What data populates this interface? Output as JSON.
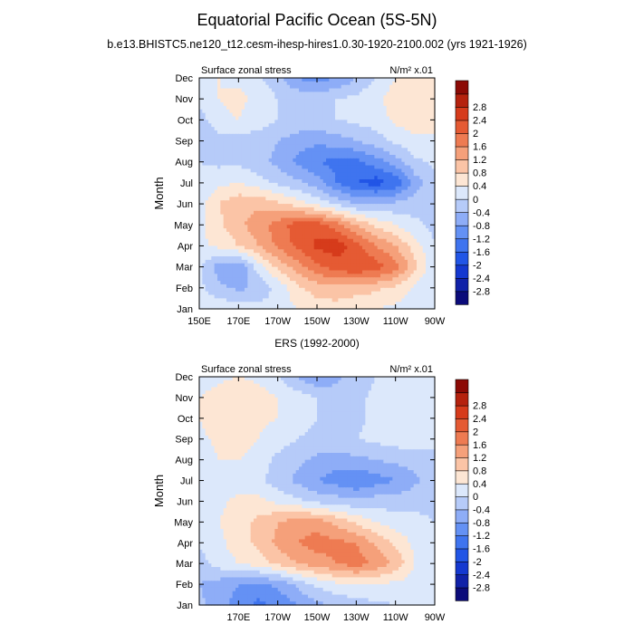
{
  "figure": {
    "title": "Equatorial Pacific Ocean (5S-5N)",
    "subtitle": "b.e13.BHISTC5.ne120_t12.cesm-ihesp-hires1.0.30-1920-2100.002 (yrs 1921-1926)"
  },
  "colorbar_colors": [
    "#0b0b7a",
    "#1021a8",
    "#1438d0",
    "#2155e6",
    "#3f74ef",
    "#6491f4",
    "#8eadf7",
    "#b6cbf9",
    "#dce8fb",
    "#fde6d4",
    "#fbc4a6",
    "#f5a07a",
    "#ee7b52",
    "#e55a33",
    "#d63b1b",
    "#b5220e",
    "#8c0a05"
  ],
  "colorbar_labels": [
    "-2.8",
    "-2.4",
    "-2",
    "-1.6",
    "-1.2",
    "-0.8",
    "-0.4",
    "0",
    "0.4",
    "0.8",
    "1.2",
    "1.6",
    "2",
    "2.4",
    "2.8"
  ],
  "chart_data": [
    {
      "type": "heatmap",
      "title": "",
      "left_string": "Surface zonal stress",
      "units": "N/m² x.01",
      "ylabel": "Month",
      "y_tick_labels": [
        "Jan",
        "Feb",
        "Mar",
        "Apr",
        "May",
        "Jun",
        "Jul",
        "Aug",
        "Sep",
        "Oct",
        "Nov",
        "Dec"
      ],
      "x_tick_labels": [
        "150E",
        "170E",
        "170W",
        "150W",
        "130W",
        "110W",
        "90W"
      ],
      "xlim": [
        150,
        270
      ],
      "levels": [
        -2.8,
        -2.4,
        -2,
        -1.6,
        -1.2,
        -0.8,
        -0.4,
        0,
        0.4,
        0.8,
        1.2,
        1.6,
        2,
        2.4,
        2.8
      ],
      "lon": [
        150,
        160,
        170,
        180,
        190,
        200,
        210,
        220,
        230,
        240,
        250,
        260,
        270
      ],
      "month": [
        "Jan",
        "Feb",
        "Mar",
        "Apr",
        "May",
        "Jun",
        "Jul",
        "Aug",
        "Sep",
        "Oct",
        "Nov",
        "Dec"
      ],
      "z": [
        [
          0.2,
          0.3,
          0.2,
          0.1,
          0.2,
          0.4,
          0.6,
          0.6,
          0.5,
          0.4,
          0.3,
          0.1,
          0.0
        ],
        [
          0.1,
          -0.3,
          -0.5,
          -0.3,
          0.1,
          0.7,
          1.0,
          1.1,
          1.0,
          0.9,
          0.7,
          0.3,
          0.0
        ],
        [
          0.1,
          -0.6,
          -0.8,
          0.2,
          0.9,
          1.4,
          1.9,
          2.2,
          2.4,
          2.2,
          1.8,
          0.9,
          0.1
        ],
        [
          0.3,
          0.5,
          0.8,
          1.2,
          1.7,
          2.1,
          2.5,
          2.6,
          2.2,
          1.6,
          1.2,
          0.6,
          0.0
        ],
        [
          0.3,
          0.7,
          1.1,
          1.4,
          1.8,
          2.2,
          2.2,
          1.8,
          1.2,
          0.7,
          0.4,
          0.1,
          -0.1
        ],
        [
          0.2,
          0.8,
          1.1,
          1.1,
          0.9,
          0.6,
          0.3,
          -0.1,
          -0.4,
          -0.4,
          -0.3,
          -0.2,
          -0.1
        ],
        [
          0.1,
          0.3,
          0.4,
          0.2,
          -0.1,
          -0.3,
          -0.6,
          -1.2,
          -1.6,
          -1.8,
          -1.5,
          -0.6,
          -0.1
        ],
        [
          0.0,
          -0.1,
          -0.1,
          -0.3,
          -0.5,
          -0.9,
          -1.2,
          -1.3,
          -1.3,
          -1.0,
          -0.6,
          -0.1,
          0.1
        ],
        [
          -0.3,
          -0.2,
          -0.2,
          -0.2,
          -0.4,
          -0.6,
          -0.7,
          -0.6,
          -0.4,
          -0.2,
          0.1,
          0.3,
          0.3
        ],
        [
          -0.2,
          0.3,
          0.4,
          0.2,
          0.0,
          -0.1,
          -0.1,
          0.0,
          0.1,
          0.2,
          0.5,
          0.6,
          0.6
        ],
        [
          0.2,
          0.4,
          0.5,
          0.3,
          0.0,
          -0.1,
          -0.2,
          0.0,
          0.1,
          0.3,
          0.6,
          0.7,
          0.6
        ],
        [
          0.3,
          0.4,
          0.3,
          0.1,
          -0.3,
          -0.8,
          -1.0,
          -0.8,
          -0.4,
          0.0,
          0.4,
          0.6,
          0.5
        ]
      ]
    },
    {
      "type": "heatmap",
      "title": "ERS (1992-2000)",
      "left_string": "Surface zonal stress",
      "units": "N/m² x.01",
      "ylabel": "Month",
      "y_tick_labels": [
        "Jan",
        "Feb",
        "Mar",
        "Apr",
        "May",
        "Jun",
        "Jul",
        "Aug",
        "Sep",
        "Oct",
        "Nov",
        "Dec"
      ],
      "x_tick_labels": [
        "170E",
        "170W",
        "150W",
        "130W",
        "110W",
        "90W"
      ],
      "xlim": [
        150,
        270
      ],
      "levels": [
        -2.8,
        -2.4,
        -2,
        -1.6,
        -1.2,
        -0.8,
        -0.4,
        0,
        0.4,
        0.8,
        1.2,
        1.6,
        2,
        2.4,
        2.8
      ],
      "lon": [
        150,
        160,
        170,
        180,
        190,
        200,
        210,
        220,
        230,
        240,
        250,
        260,
        270
      ],
      "month": [
        "Jan",
        "Feb",
        "Mar",
        "Apr",
        "May",
        "Jun",
        "Jul",
        "Aug",
        "Sep",
        "Oct",
        "Nov",
        "Dec"
      ],
      "z": [
        [
          -0.3,
          -0.6,
          -1.0,
          -1.3,
          -1.1,
          -0.8,
          -0.5,
          -0.3,
          -0.2,
          -0.1,
          0.0,
          0.0,
          0.0
        ],
        [
          -0.4,
          -0.6,
          -0.8,
          -0.9,
          -0.7,
          -0.3,
          0.1,
          0.3,
          0.4,
          0.4,
          0.3,
          0.2,
          0.1
        ],
        [
          -0.2,
          0.2,
          0.4,
          0.6,
          0.9,
          1.2,
          1.4,
          1.6,
          1.8,
          1.5,
          1.1,
          0.4,
          0.1
        ],
        [
          0.1,
          0.3,
          0.6,
          0.9,
          1.3,
          1.6,
          1.8,
          1.7,
          1.6,
          1.1,
          0.7,
          0.3,
          0.1
        ],
        [
          0.2,
          0.4,
          0.6,
          0.9,
          1.2,
          1.4,
          1.4,
          1.1,
          0.7,
          0.4,
          0.2,
          0.1,
          0.0
        ],
        [
          0.1,
          0.3,
          0.5,
          0.5,
          0.3,
          0.1,
          -0.1,
          -0.2,
          -0.3,
          -0.2,
          -0.2,
          -0.1,
          -0.1
        ],
        [
          0.0,
          0.1,
          0.2,
          0.1,
          -0.2,
          -0.5,
          -0.8,
          -1.0,
          -1.2,
          -1.0,
          -0.8,
          -0.5,
          -0.2
        ],
        [
          0.1,
          0.4,
          0.4,
          0.2,
          -0.1,
          -0.3,
          -0.5,
          -0.6,
          -0.5,
          -0.4,
          -0.3,
          -0.2,
          -0.1
        ],
        [
          0.3,
          0.5,
          0.6,
          0.4,
          0.2,
          0.0,
          -0.1,
          -0.1,
          0.0,
          0.1,
          0.2,
          0.2,
          0.1
        ],
        [
          0.4,
          0.6,
          0.6,
          0.5,
          0.4,
          0.2,
          0.0,
          -0.2,
          -0.1,
          0.1,
          0.2,
          0.2,
          0.1
        ],
        [
          0.4,
          0.6,
          0.7,
          0.6,
          0.4,
          0.2,
          0.0,
          -0.2,
          -0.1,
          0.1,
          0.2,
          0.2,
          0.1
        ],
        [
          0.1,
          0.3,
          0.4,
          0.3,
          0.0,
          -0.4,
          -0.8,
          -0.5,
          -0.2,
          0.0,
          0.1,
          0.1,
          0.0
        ]
      ]
    }
  ]
}
